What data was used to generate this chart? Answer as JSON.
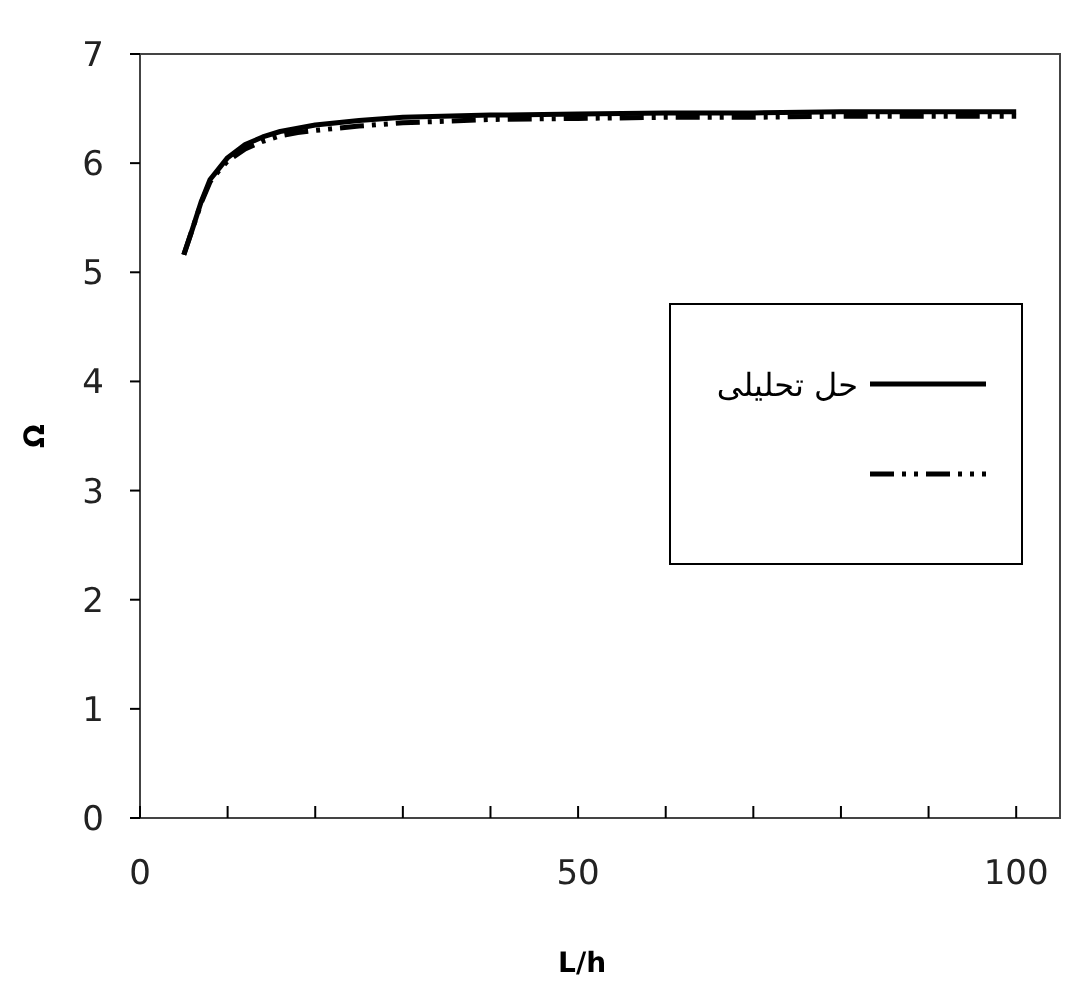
{
  "chart_data": {
    "type": "line",
    "xlabel": "L/h",
    "ylabel": "Ω",
    "xlim": [
      0,
      105
    ],
    "ylim": [
      0,
      7
    ],
    "xticks": [
      0,
      {
        "value": 10,
        "label": null
      },
      {
        "value": 20,
        "label": null
      },
      {
        "value": 30,
        "label": null
      },
      {
        "value": 40,
        "label": null
      },
      50,
      {
        "value": 60,
        "label": null
      },
      {
        "value": 70,
        "label": null
      },
      {
        "value": 80,
        "label": null
      },
      {
        "value": 90,
        "label": null
      },
      100
    ],
    "yticks": [
      0,
      1,
      2,
      3,
      4,
      5,
      6,
      7
    ],
    "legend": "right",
    "grid": false,
    "series": [
      {
        "name": "حل تحلیلی",
        "color": "#000000",
        "line_style": "solid",
        "x": [
          5,
          6,
          7,
          8,
          9,
          10,
          12,
          14,
          16,
          18,
          20,
          25,
          30,
          40,
          50,
          60,
          70,
          80,
          90,
          100
        ],
        "values": [
          5.16,
          5.4,
          5.65,
          5.85,
          5.95,
          6.05,
          6.17,
          6.24,
          6.29,
          6.32,
          6.35,
          6.39,
          6.42,
          6.44,
          6.45,
          6.46,
          6.46,
          6.47,
          6.47,
          6.47
        ]
      },
      {
        "color": "#000000",
        "line_style": "dashdotdot",
        "x": [
          5,
          6,
          7,
          8,
          9,
          10,
          12,
          14,
          16,
          18,
          20,
          25,
          30,
          40,
          50,
          60,
          70,
          80,
          90,
          100
        ],
        "values": [
          5.16,
          5.4,
          5.64,
          5.83,
          5.93,
          6.02,
          6.13,
          6.2,
          6.25,
          6.28,
          6.3,
          6.34,
          6.37,
          6.4,
          6.41,
          6.42,
          6.42,
          6.43,
          6.43,
          6.43
        ]
      }
    ]
  }
}
